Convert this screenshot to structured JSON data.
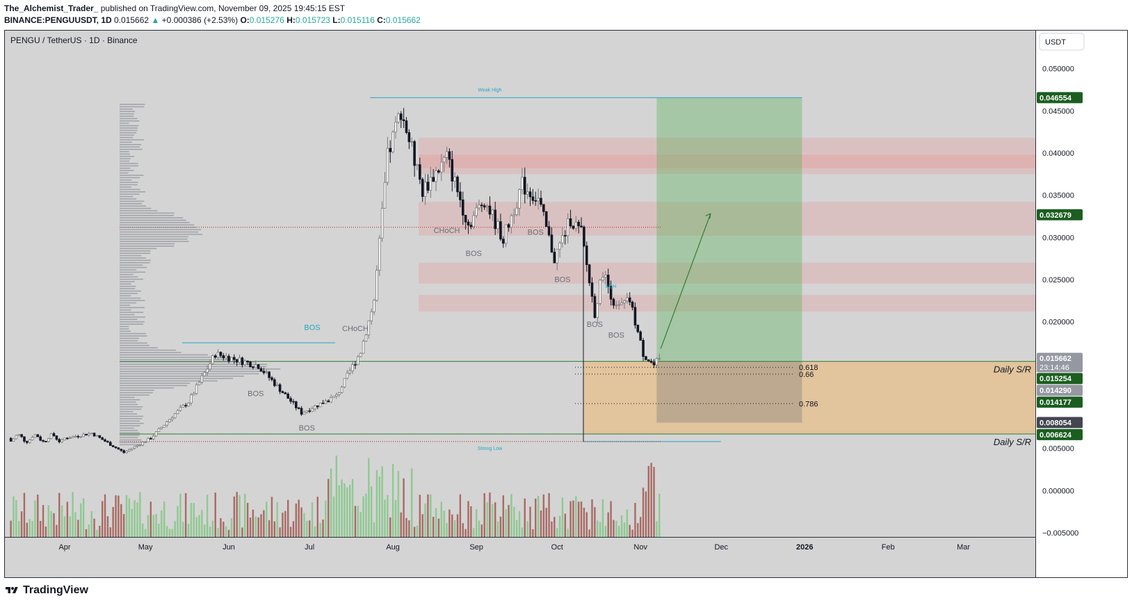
{
  "header": {
    "author": "The_Alchemist_Trader_",
    "published": "published on TradingView.com, November 09, 2025 19:45:15 EST",
    "symbol_line": "BINANCE:PENGUUSDT, 1D",
    "last": "0.015662",
    "change_arrow": "▲",
    "change": "+0.000386 (+2.53%)",
    "o_label": "O:",
    "o": "0.015276",
    "h_label": "H:",
    "h": "0.015723",
    "l_label": "L:",
    "l": "0.015116",
    "c_label": "C:",
    "c": "0.015662"
  },
  "chart_data": {
    "type": "candlestick",
    "title": "PENGU / TetherUS · 1D · Binance",
    "currency_button": "USDT",
    "ylim": [
      -0.0055,
      0.0545
    ],
    "y_ticks": [
      {
        "v": 0.05,
        "label": "0.050000"
      },
      {
        "v": 0.045,
        "label": "0.045000"
      },
      {
        "v": 0.04,
        "label": "0.040000"
      },
      {
        "v": 0.035,
        "label": "0.035000"
      },
      {
        "v": 0.03,
        "label": "0.030000"
      },
      {
        "v": 0.025,
        "label": "0.025000"
      },
      {
        "v": 0.02,
        "label": "0.020000"
      },
      {
        "v": 0.005,
        "label": "0.005000"
      },
      {
        "v": 0.0,
        "label": "0.000000"
      },
      {
        "v": -0.005,
        "label": "−0.005000"
      }
    ],
    "x_ticks": [
      {
        "label": "Apr",
        "t": 0
      },
      {
        "label": "May",
        "t": 30
      },
      {
        "label": "Jun",
        "t": 61
      },
      {
        "label": "Jul",
        "t": 91
      },
      {
        "label": "Aug",
        "t": 122
      },
      {
        "label": "Sep",
        "t": 153
      },
      {
        "label": "Oct",
        "t": 183
      },
      {
        "label": "Nov",
        "t": 214
      },
      {
        "label": "Dec",
        "t": 244
      },
      {
        "label": "2026",
        "t": 275
      },
      {
        "label": "Feb",
        "t": 306
      },
      {
        "label": "Mar",
        "t": 334
      }
    ],
    "price_labels": [
      {
        "v": 0.046554,
        "label": "0.046554",
        "color": "#1b5e20"
      },
      {
        "v": 0.032679,
        "label": "0.032679",
        "color": "#1b5e20"
      },
      {
        "v": 0.015662,
        "label": "0.015662",
        "color": "#9598a1",
        "sub": "23:14:46"
      },
      {
        "v": 0.015254,
        "label": "0.015254",
        "color": "#1b5e20"
      },
      {
        "v": 0.01429,
        "label": "0.014290",
        "color": "#9598a1"
      },
      {
        "v": 0.014177,
        "label": "0.014177",
        "color": "#1b5e20"
      },
      {
        "v": 0.008054,
        "label": "0.008054",
        "color": "#434651"
      },
      {
        "v": 0.006624,
        "label": "0.006624",
        "color": "#1b5e20"
      }
    ],
    "supply_zones": [
      [
        0.0375,
        0.0418
      ],
      [
        0.0382,
        0.0398
      ],
      [
        0.0302,
        0.0342
      ],
      [
        0.0245,
        0.027
      ],
      [
        0.0212,
        0.0232
      ]
    ],
    "demand_zone": [
      0.0067,
      0.0153
    ],
    "long_position": {
      "t_start": 220,
      "t_end": 274,
      "entry": 0.0153,
      "target": 0.046554,
      "stop": 0.008054
    },
    "fib_levels": [
      {
        "v": 0.0146,
        "label": "0.618"
      },
      {
        "v": 0.0138,
        "label": "0.66"
      },
      {
        "v": 0.0103,
        "label": "0.786"
      }
    ],
    "sr_labels": [
      {
        "v": 0.0153,
        "label": "Daily S/R"
      },
      {
        "v": 0.0067,
        "label": "Daily S/R"
      }
    ],
    "annotations": [
      {
        "t": 158,
        "v": 0.0473,
        "label": "Weak High"
      },
      {
        "t": 158,
        "v": 0.0048,
        "label": "Strong Low"
      },
      {
        "t": 142,
        "v": 0.0305,
        "label": "CHoCH"
      },
      {
        "t": 108,
        "v": 0.0189,
        "label": "CHoCH"
      },
      {
        "t": 152,
        "v": 0.0278,
        "label": "BOS"
      },
      {
        "t": 175,
        "v": 0.0303,
        "label": "BOS"
      },
      {
        "t": 185,
        "v": 0.0247,
        "label": "BOS"
      },
      {
        "t": 197,
        "v": 0.0194,
        "label": "BOS"
      },
      {
        "t": 205,
        "v": 0.0181,
        "label": "BOS"
      },
      {
        "t": 71,
        "v": 0.0112,
        "label": "BOS"
      },
      {
        "t": 90,
        "v": 0.0071,
        "label": "BOS"
      },
      {
        "t": 92,
        "v": 0.019,
        "label": "BOS"
      },
      {
        "t": 203,
        "v": 0.024,
        "label": "EQH"
      }
    ],
    "key_points": [
      {
        "t": 0,
        "v": 0.0062
      },
      {
        "t": 10,
        "v": 0.0068
      },
      {
        "t": 22,
        "v": 0.0045
      },
      {
        "t": 32,
        "v": 0.0062
      },
      {
        "t": 40,
        "v": 0.0088
      },
      {
        "t": 46,
        "v": 0.0105
      },
      {
        "t": 56,
        "v": 0.0162
      },
      {
        "t": 72,
        "v": 0.0148
      },
      {
        "t": 88,
        "v": 0.0092
      },
      {
        "t": 101,
        "v": 0.0112
      },
      {
        "t": 110,
        "v": 0.0165
      },
      {
        "t": 115,
        "v": 0.0225
      },
      {
        "t": 120,
        "v": 0.0395
      },
      {
        "t": 125,
        "v": 0.0452
      },
      {
        "t": 133,
        "v": 0.0355
      },
      {
        "t": 142,
        "v": 0.0395
      },
      {
        "t": 150,
        "v": 0.0315
      },
      {
        "t": 156,
        "v": 0.0345
      },
      {
        "t": 163,
        "v": 0.0298
      },
      {
        "t": 170,
        "v": 0.0362
      },
      {
        "t": 176,
        "v": 0.0345
      },
      {
        "t": 182,
        "v": 0.0275
      },
      {
        "t": 188,
        "v": 0.0322
      },
      {
        "t": 192,
        "v": 0.0305
      },
      {
        "t": 197,
        "v": 0.021
      },
      {
        "t": 200,
        "v": 0.026
      },
      {
        "t": 205,
        "v": 0.0215
      },
      {
        "t": 210,
        "v": 0.0225
      },
      {
        "t": 215,
        "v": 0.0162
      },
      {
        "t": 219,
        "v": 0.0148
      },
      {
        "t": 221,
        "v": 0.0157
      }
    ]
  },
  "footer": {
    "brand": "TradingView"
  }
}
